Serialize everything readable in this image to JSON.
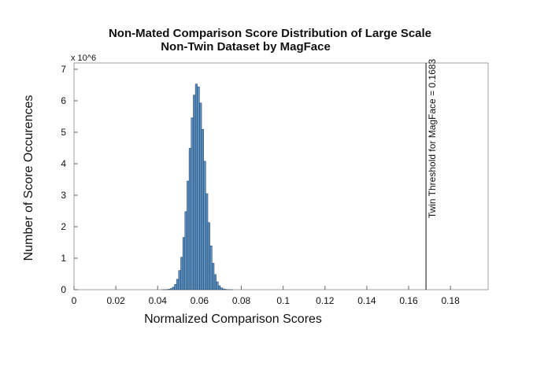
{
  "chart_data": {
    "type": "histogram",
    "title": [
      "Non-Mated Comparison Score Distribution of Large Scale",
      "Non-Twin Dataset by MagFace"
    ],
    "xlabel": "Normalized Comparison Scores",
    "ylabel": "Number of Score Occurences",
    "y_multiplier": "x 10^6",
    "bins": [
      0.042,
      0.043,
      0.044,
      0.045,
      0.046,
      0.047,
      0.048,
      0.049,
      0.05,
      0.051,
      0.052,
      0.053,
      0.054,
      0.055,
      0.056,
      0.057,
      0.058,
      0.059,
      0.06,
      0.061,
      0.062,
      0.063,
      0.064,
      0.065,
      0.066,
      0.067,
      0.068,
      0.069,
      0.07,
      0.071,
      0.072,
      0.073,
      0.074,
      0.075,
      0.076
    ],
    "counts": [
      0.001,
      0.002,
      0.006,
      0.014,
      0.035,
      0.079,
      0.17,
      0.33,
      0.61,
      1.03,
      1.66,
      2.48,
      3.45,
      4.49,
      5.46,
      6.18,
      6.53,
      6.44,
      5.93,
      5.09,
      4.08,
      3.05,
      2.13,
      1.39,
      0.84,
      0.48,
      0.25,
      0.125,
      0.057,
      0.025,
      0.01,
      0.004,
      0.001,
      0.0004
    ],
    "color": "#5b8fc0",
    "edge_color": "#1f3d5c",
    "threshold": {
      "value": 0.1683,
      "label": "Twin Threshold for MagFace = 0.1683"
    },
    "xlim": [
      0,
      0.198
    ],
    "ylim": [
      0,
      7.2
    ],
    "xticks": [
      0,
      0.02,
      0.04,
      0.06,
      0.08,
      0.1,
      0.12,
      0.14,
      0.16,
      0.18
    ],
    "yticks": [
      0,
      1,
      2,
      3,
      4,
      5,
      6,
      7
    ]
  }
}
